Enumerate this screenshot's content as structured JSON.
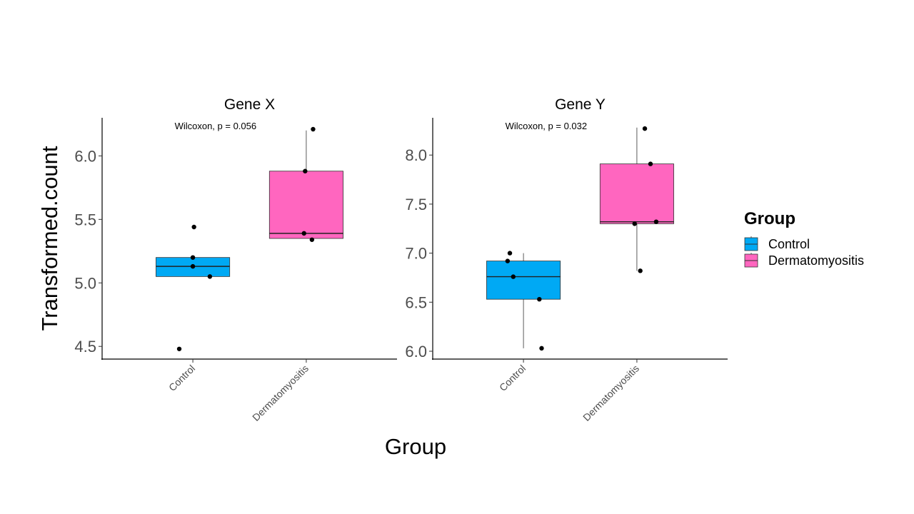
{
  "chart_data": {
    "type": "box",
    "xlabel": "Group",
    "ylabel": "Transformed.count",
    "legend": {
      "title": "Group",
      "position": "right",
      "entries": [
        {
          "label": "Control",
          "color": "#00A9F4"
        },
        {
          "label": "Dermatomyositis",
          "color": "#FF66BF"
        }
      ]
    },
    "categories": [
      "Control",
      "Dermatomyositis"
    ],
    "panels": [
      {
        "title": "Gene X",
        "annotation": "Wilcoxon, p = 0.056",
        "ylim": [
          4.4,
          6.3
        ],
        "yticks": [
          4.5,
          5.0,
          5.5,
          6.0
        ],
        "ytick_labels": [
          "4.5",
          "5.0",
          "5.5",
          "6.0"
        ],
        "boxes": [
          {
            "group": "Control",
            "whisker_low": 5.05,
            "q1": 5.05,
            "median": 5.13,
            "q3": 5.2,
            "whisker_high": 5.2,
            "points": [
              4.48,
              5.05,
              5.13,
              5.2,
              5.44
            ],
            "jitter": [
              -0.12,
              0.15,
              0.0,
              0.0,
              0.01
            ]
          },
          {
            "group": "Dermatomyositis",
            "whisker_low": 5.35,
            "q1": 5.35,
            "median": 5.39,
            "q3": 5.88,
            "whisker_high": 6.2,
            "points": [
              5.34,
              5.39,
              5.88,
              6.21
            ],
            "jitter": [
              0.05,
              -0.02,
              -0.01,
              0.06
            ]
          }
        ]
      },
      {
        "title": "Gene Y",
        "annotation": "Wilcoxon, p = 0.032",
        "ylim": [
          5.92,
          8.38
        ],
        "yticks": [
          6.0,
          6.5,
          7.0,
          7.5,
          8.0
        ],
        "ytick_labels": [
          "6.0",
          "6.5",
          "7.0",
          "7.5",
          "8.0"
        ],
        "boxes": [
          {
            "group": "Control",
            "whisker_low": 6.03,
            "q1": 6.53,
            "median": 6.76,
            "q3": 6.92,
            "whisker_high": 7.0,
            "points": [
              6.03,
              6.53,
              6.76,
              6.92,
              7.0
            ],
            "jitter": [
              0.16,
              0.14,
              -0.09,
              -0.14,
              -0.12
            ]
          },
          {
            "group": "Dermatomyositis",
            "whisker_low": 6.82,
            "q1": 7.3,
            "median": 7.32,
            "q3": 7.91,
            "whisker_high": 8.28,
            "points": [
              6.82,
              7.3,
              7.32,
              7.91,
              8.27
            ],
            "jitter": [
              0.03,
              -0.02,
              0.17,
              0.12,
              0.07
            ]
          }
        ]
      }
    ]
  }
}
